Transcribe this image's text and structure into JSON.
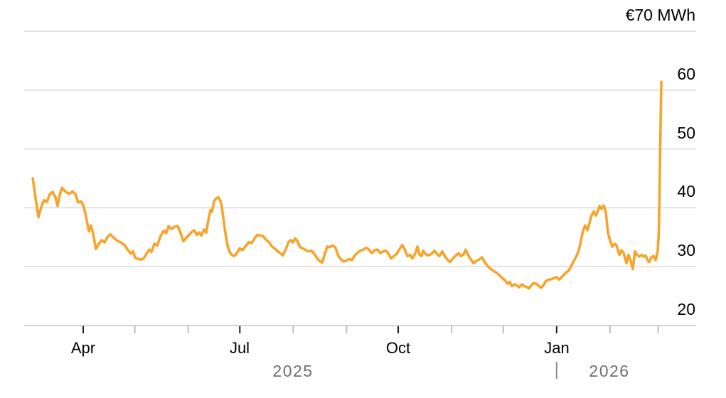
{
  "page": {
    "background": "#FFFFFF"
  },
  "chart_data": {
    "type": "line",
    "unit_label": "€70 MWh",
    "colors": {
      "line": "#F7A42D",
      "gridline": "#DADADA",
      "axis_line": "#C4C4C4",
      "major_tick": "#1A1A1A",
      "minor_tick": "#BDBDBD",
      "label_text": "#000000",
      "year_text": "#6F6F6F",
      "year_divider": "#8A8A8A",
      "background": "#FFFFFF"
    },
    "y_axis": {
      "min": 20,
      "max": 70,
      "gridlines": [
        70,
        60,
        50,
        40,
        30,
        20
      ],
      "tick_labels": [
        {
          "v": 70,
          "label": "€70 MWh"
        },
        {
          "v": 60,
          "label": "60"
        },
        {
          "v": 50,
          "label": "50"
        },
        {
          "v": 40,
          "label": "40"
        },
        {
          "v": 30,
          "label": "30"
        },
        {
          "v": 20,
          "label": "20"
        }
      ],
      "grid": true,
      "side": "right"
    },
    "x_axis": {
      "epoch_day0": "2025-03-01",
      "range_days": [
        -3,
        387
      ],
      "major_ticks": [
        {
          "t": 31,
          "label": "Apr"
        },
        {
          "t": 122,
          "label": "Jul"
        },
        {
          "t": 214,
          "label": "Oct"
        },
        {
          "t": 306,
          "label": "Jan"
        }
      ],
      "minor_ticks": [
        61,
        92,
        153,
        184,
        245,
        275,
        337,
        365
      ],
      "year_labels": [
        {
          "label": "2025"
        },
        {
          "label": "2026"
        }
      ],
      "year_divider_t": 306
    },
    "legend": "none",
    "series": [
      {
        "name": "price",
        "color": "#F7A42D",
        "points": [
          [
            1.7,
            45.0
          ],
          [
            3.3,
            41.8
          ],
          [
            5.0,
            38.4
          ],
          [
            6.6,
            40.1
          ],
          [
            8.3,
            41.3
          ],
          [
            9.9,
            41.0
          ],
          [
            11.6,
            42.3
          ],
          [
            13.2,
            42.7
          ],
          [
            14.9,
            41.8
          ],
          [
            16.1,
            40.3
          ],
          [
            17.4,
            42.2
          ],
          [
            18.6,
            43.4
          ],
          [
            19.8,
            43.0
          ],
          [
            21.5,
            42.6
          ],
          [
            23.2,
            42.4
          ],
          [
            24.8,
            42.8
          ],
          [
            26.5,
            42.3
          ],
          [
            28.1,
            40.9
          ],
          [
            29.8,
            41.1
          ],
          [
            31.0,
            40.4
          ],
          [
            32.2,
            39.2
          ],
          [
            33.5,
            37.2
          ],
          [
            34.3,
            36.0
          ],
          [
            35.5,
            37.0
          ],
          [
            36.8,
            35.6
          ],
          [
            38.4,
            33.0
          ],
          [
            40.1,
            33.9
          ],
          [
            41.7,
            34.5
          ],
          [
            43.4,
            34.1
          ],
          [
            45.0,
            35.0
          ],
          [
            46.7,
            35.5
          ],
          [
            48.8,
            34.9
          ],
          [
            50.8,
            34.4
          ],
          [
            52.9,
            34.1
          ],
          [
            55.0,
            33.7
          ],
          [
            57.0,
            32.8
          ],
          [
            58.7,
            32.2
          ],
          [
            59.9,
            32.6
          ],
          [
            61.2,
            31.5
          ],
          [
            62.8,
            31.3
          ],
          [
            64.5,
            31.2
          ],
          [
            66.1,
            31.4
          ],
          [
            67.8,
            32.2
          ],
          [
            69.4,
            32.9
          ],
          [
            70.7,
            32.5
          ],
          [
            72.3,
            33.9
          ],
          [
            74.0,
            33.6
          ],
          [
            76.0,
            35.2
          ],
          [
            77.7,
            36.1
          ],
          [
            79.3,
            35.7
          ],
          [
            80.6,
            36.9
          ],
          [
            82.2,
            36.4
          ],
          [
            84.3,
            36.8
          ],
          [
            85.9,
            36.9
          ],
          [
            87.6,
            35.7
          ],
          [
            89.2,
            34.3
          ],
          [
            90.9,
            34.9
          ],
          [
            92.5,
            35.4
          ],
          [
            94.2,
            35.9
          ],
          [
            95.4,
            36.2
          ],
          [
            97.1,
            35.4
          ],
          [
            98.3,
            35.8
          ],
          [
            99.6,
            35.3
          ],
          [
            101.2,
            36.3
          ],
          [
            102.5,
            35.8
          ],
          [
            103.7,
            37.9
          ],
          [
            104.9,
            39.6
          ],
          [
            105.8,
            39.3
          ],
          [
            107.0,
            41.1
          ],
          [
            108.2,
            41.6
          ],
          [
            109.5,
            41.8
          ],
          [
            110.7,
            41.2
          ],
          [
            111.5,
            40.2
          ],
          [
            112.4,
            38.2
          ],
          [
            113.6,
            35.7
          ],
          [
            114.9,
            33.5
          ],
          [
            116.1,
            32.5
          ],
          [
            117.3,
            32.0
          ],
          [
            118.6,
            31.8
          ],
          [
            119.8,
            32.1
          ],
          [
            121.9,
            33.1
          ],
          [
            123.5,
            32.8
          ],
          [
            125.2,
            33.4
          ],
          [
            127.2,
            34.2
          ],
          [
            128.9,
            34.0
          ],
          [
            130.5,
            34.8
          ],
          [
            132.2,
            35.4
          ],
          [
            133.8,
            35.3
          ],
          [
            135.5,
            35.2
          ],
          [
            137.1,
            34.6
          ],
          [
            138.8,
            34.2
          ],
          [
            140.4,
            33.5
          ],
          [
            142.1,
            33.1
          ],
          [
            143.7,
            32.7
          ],
          [
            145.4,
            32.3
          ],
          [
            147.0,
            31.9
          ],
          [
            148.7,
            33.0
          ],
          [
            150.3,
            34.2
          ],
          [
            151.6,
            34.5
          ],
          [
            152.8,
            34.1
          ],
          [
            154.1,
            34.8
          ],
          [
            155.3,
            34.4
          ],
          [
            157.0,
            33.3
          ],
          [
            158.6,
            33.1
          ],
          [
            160.3,
            32.8
          ],
          [
            161.9,
            32.6
          ],
          [
            163.6,
            32.7
          ],
          [
            165.2,
            32.2
          ],
          [
            166.9,
            31.4
          ],
          [
            168.5,
            30.9
          ],
          [
            169.8,
            30.7
          ],
          [
            171.4,
            32.2
          ],
          [
            172.7,
            33.4
          ],
          [
            174.3,
            33.3
          ],
          [
            176.0,
            33.6
          ],
          [
            177.6,
            33.2
          ],
          [
            178.9,
            32.0
          ],
          [
            180.5,
            31.3
          ],
          [
            182.2,
            30.9
          ],
          [
            183.8,
            31.0
          ],
          [
            185.5,
            31.3
          ],
          [
            187.1,
            31.1
          ],
          [
            188.8,
            31.9
          ],
          [
            190.4,
            32.4
          ],
          [
            192.1,
            32.7
          ],
          [
            193.7,
            32.9
          ],
          [
            195.4,
            33.2
          ],
          [
            197.0,
            32.9
          ],
          [
            198.7,
            32.3
          ],
          [
            200.3,
            32.8
          ],
          [
            202.0,
            32.9
          ],
          [
            203.6,
            32.3
          ],
          [
            205.3,
            32.6
          ],
          [
            206.9,
            32.7
          ],
          [
            208.6,
            32.1
          ],
          [
            209.8,
            31.4
          ],
          [
            211.5,
            31.8
          ],
          [
            213.1,
            32.2
          ],
          [
            214.8,
            33.0
          ],
          [
            216.4,
            33.7
          ],
          [
            217.7,
            33.0
          ],
          [
            219.3,
            31.8
          ],
          [
            221.0,
            32.0
          ],
          [
            222.2,
            31.4
          ],
          [
            223.9,
            32.2
          ],
          [
            225.1,
            33.4
          ],
          [
            226.4,
            32.0
          ],
          [
            227.6,
            31.8
          ],
          [
            228.4,
            32.7
          ],
          [
            230.1,
            32.1
          ],
          [
            231.7,
            31.9
          ],
          [
            233.4,
            32.2
          ],
          [
            235.0,
            32.7
          ],
          [
            236.7,
            32.1
          ],
          [
            237.9,
            31.8
          ],
          [
            239.6,
            32.6
          ],
          [
            241.2,
            31.7
          ],
          [
            242.9,
            31.1
          ],
          [
            244.1,
            30.8
          ],
          [
            245.8,
            31.4
          ],
          [
            247.4,
            31.9
          ],
          [
            249.1,
            32.3
          ],
          [
            250.3,
            31.8
          ],
          [
            252.0,
            32.1
          ],
          [
            253.2,
            32.9
          ],
          [
            254.9,
            31.8
          ],
          [
            256.5,
            31.1
          ],
          [
            257.7,
            30.6
          ],
          [
            259.0,
            30.9
          ],
          [
            260.2,
            31.1
          ],
          [
            261.5,
            31.3
          ],
          [
            262.7,
            31.6
          ],
          [
            264.4,
            30.7
          ],
          [
            266.0,
            30.1
          ],
          [
            267.7,
            29.6
          ],
          [
            269.3,
            29.3
          ],
          [
            271.0,
            29.0
          ],
          [
            272.6,
            28.6
          ],
          [
            274.3,
            28.1
          ],
          [
            275.9,
            27.7
          ],
          [
            277.6,
            27.1
          ],
          [
            278.8,
            27.4
          ],
          [
            280.1,
            26.7
          ],
          [
            281.7,
            27.0
          ],
          [
            283.0,
            26.8
          ],
          [
            284.2,
            26.5
          ],
          [
            285.9,
            27.0
          ],
          [
            287.1,
            26.7
          ],
          [
            288.3,
            26.6
          ],
          [
            290.0,
            26.3
          ],
          [
            291.2,
            26.8
          ],
          [
            292.5,
            27.2
          ],
          [
            294.1,
            27.1
          ],
          [
            295.8,
            26.7
          ],
          [
            297.0,
            26.4
          ],
          [
            298.3,
            26.8
          ],
          [
            299.9,
            27.6
          ],
          [
            301.6,
            27.8
          ],
          [
            303.2,
            27.9
          ],
          [
            304.9,
            28.1
          ],
          [
            306.1,
            28.2
          ],
          [
            307.4,
            27.8
          ],
          [
            308.6,
            28.1
          ],
          [
            309.8,
            28.5
          ],
          [
            311.5,
            29.0
          ],
          [
            313.1,
            29.4
          ],
          [
            314.8,
            30.3
          ],
          [
            316.4,
            31.2
          ],
          [
            317.7,
            31.9
          ],
          [
            318.9,
            32.8
          ],
          [
            320.2,
            34.5
          ],
          [
            321.4,
            36.2
          ],
          [
            322.6,
            37.0
          ],
          [
            323.9,
            36.2
          ],
          [
            325.1,
            37.4
          ],
          [
            326.3,
            38.7
          ],
          [
            327.6,
            39.4
          ],
          [
            328.8,
            38.7
          ],
          [
            330.1,
            39.5
          ],
          [
            330.9,
            40.3
          ],
          [
            332.1,
            39.8
          ],
          [
            333.4,
            40.4
          ],
          [
            334.6,
            39.3
          ],
          [
            335.8,
            35.8
          ],
          [
            337.1,
            34.4
          ],
          [
            338.3,
            33.4
          ],
          [
            339.6,
            33.9
          ],
          [
            340.8,
            33.6
          ],
          [
            342.5,
            32.0
          ],
          [
            343.7,
            32.8
          ],
          [
            344.9,
            32.3
          ],
          [
            346.6,
            30.6
          ],
          [
            347.8,
            32.0
          ],
          [
            349.1,
            30.9
          ],
          [
            350.3,
            29.6
          ],
          [
            351.5,
            32.6
          ],
          [
            352.8,
            32.0
          ],
          [
            354.0,
            31.7
          ],
          [
            355.3,
            32.0
          ],
          [
            356.5,
            31.7
          ],
          [
            357.7,
            31.9
          ],
          [
            359.0,
            31.1
          ],
          [
            359.8,
            30.8
          ],
          [
            361.1,
            31.6
          ],
          [
            362.3,
            31.8
          ],
          [
            363.5,
            31.1
          ],
          [
            364.8,
            32.8
          ],
          [
            365.4,
            36.0
          ],
          [
            365.9,
            45.0
          ],
          [
            366.4,
            54.0
          ],
          [
            366.8,
            61.4
          ]
        ]
      }
    ]
  }
}
